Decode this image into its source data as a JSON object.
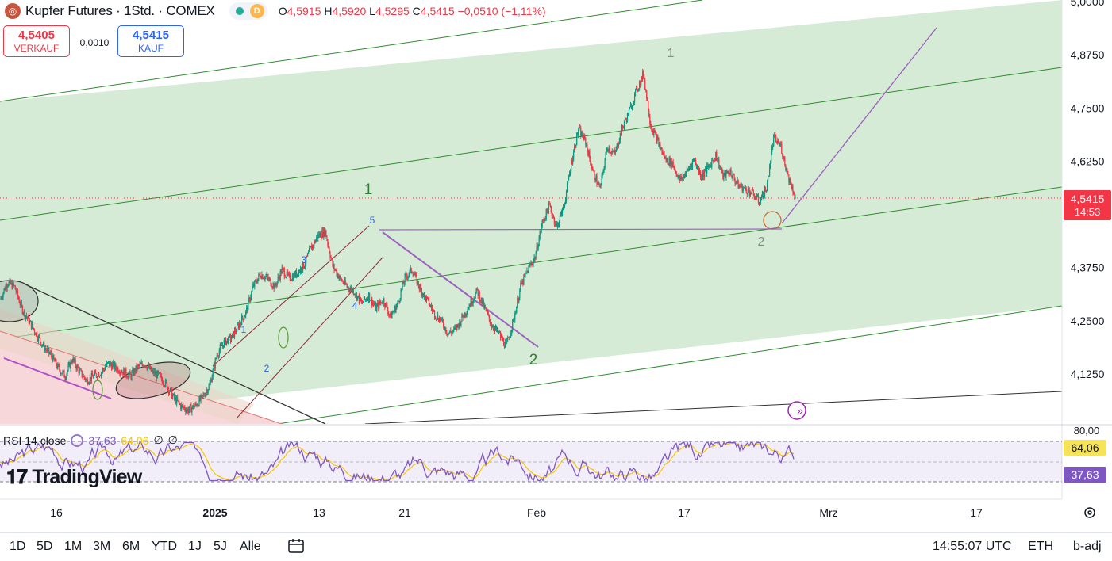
{
  "header": {
    "title": "Kupfer Futures · 1Std. · COMEX",
    "badge": "D",
    "ohlc": [
      {
        "k": "O",
        "v": "4,5915"
      },
      {
        "k": "H",
        "v": "4,5920"
      },
      {
        "k": "L",
        "v": "4,5295"
      },
      {
        "k": "C",
        "v": "4,5415"
      }
    ],
    "change": "−0,0510 (−1,11%)"
  },
  "trade": {
    "sell_price": "4,5405",
    "sell_label": "VERKAUF",
    "spread": "0,0010",
    "buy_price": "4,5415",
    "buy_label": "KAUF"
  },
  "chart_data": {
    "type": "line",
    "price_axis_labels": [
      "5,0000",
      "4,8750",
      "4,7500",
      "4,6250",
      "4,5000",
      "4,3750",
      "4,2500",
      "4,1250"
    ],
    "price_axis_values": [
      5.0,
      4.875,
      4.75,
      4.625,
      4.5,
      4.375,
      4.25,
      4.125
    ],
    "ylim": [
      4.04,
      5.0
    ],
    "last_price": "4,5415",
    "last_price_value": 4.5415,
    "countdown": "14:53",
    "time_axis_labels": [
      "16",
      "2025",
      "13",
      "21",
      "Feb",
      "17",
      "Mrz",
      "17"
    ],
    "series": [
      {
        "values": [
          4.3,
          4.34,
          4.33,
          4.28,
          4.25,
          4.22,
          4.19,
          4.17,
          4.14,
          4.12,
          4.16,
          4.13,
          4.11,
          4.12,
          4.13,
          4.15,
          4.14,
          4.13,
          4.12,
          4.14,
          4.15,
          4.13,
          4.12,
          4.1,
          4.07,
          4.05,
          4.04,
          4.05,
          4.07,
          4.1,
          4.17,
          4.2,
          4.21,
          4.24,
          4.27,
          4.33,
          4.36,
          4.35,
          4.33,
          4.37,
          4.35,
          4.36,
          4.38,
          4.42,
          4.45,
          4.46,
          4.38,
          4.35,
          4.33,
          4.32,
          4.29,
          4.31,
          4.28,
          4.3,
          4.26,
          4.29,
          4.35,
          4.37,
          4.33,
          4.3,
          4.27,
          4.25,
          4.22,
          4.23,
          4.26,
          4.29,
          4.32,
          4.28,
          4.24,
          4.22,
          4.19,
          4.25,
          4.33,
          4.37,
          4.4,
          4.48,
          4.52,
          4.47,
          4.52,
          4.62,
          4.7,
          4.67,
          4.6,
          4.56,
          4.66,
          4.64,
          4.7,
          4.74,
          4.79,
          4.83,
          4.71,
          4.67,
          4.63,
          4.62,
          4.58,
          4.6,
          4.63,
          4.59,
          4.61,
          4.64,
          4.59,
          4.6,
          4.57,
          4.56,
          4.55,
          4.53,
          4.56,
          4.68,
          4.66,
          4.59,
          4.5415
        ]
      }
    ]
  },
  "wave_labels": {
    "gray_1": "1",
    "gray_2": "2",
    "green_1": "1",
    "green_2": "2",
    "blue_1": "1",
    "blue_2": "2",
    "blue_3": "3",
    "blue_4": "4",
    "blue_5": "5"
  },
  "rsi": {
    "title": "RSI 14 close",
    "value_rsi": "37,63",
    "value_ma": "64,06",
    "axis_top": "80,00",
    "empty1": "∅",
    "empty2": "∅"
  },
  "colors": {
    "up": "#089981",
    "down": "#f23645",
    "channel_fill": "#d4ead4",
    "channel_line": "#1b8a1b",
    "purple": "#9c5fc0",
    "rsi_line": "#7e57c2",
    "rsi_ma": "#f7c600"
  },
  "brand": "TradingView",
  "bottom": {
    "ranges": [
      "1D",
      "5D",
      "1M",
      "3M",
      "6M",
      "YTD",
      "1J",
      "5J",
      "Alle"
    ],
    "time": "14:55:07 UTC",
    "session": "ETH",
    "adj": "b-adj"
  }
}
